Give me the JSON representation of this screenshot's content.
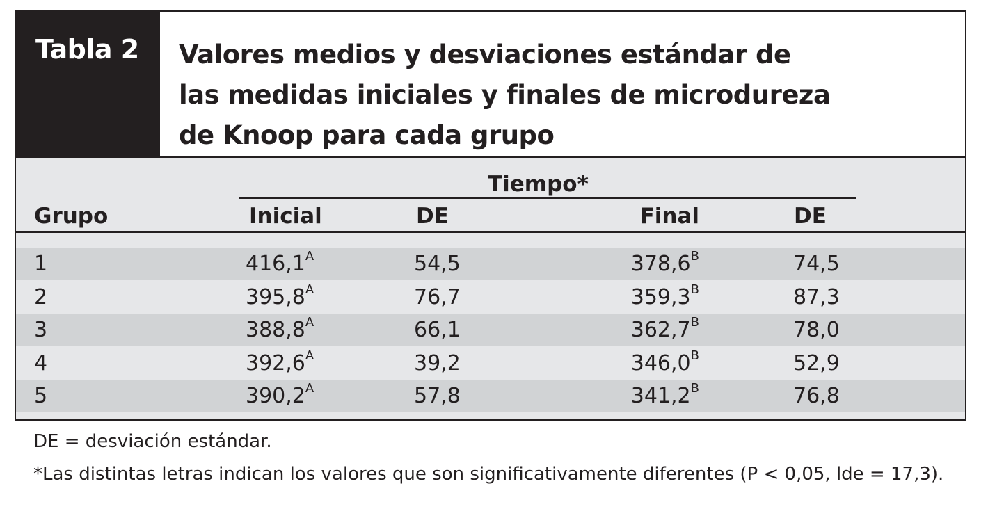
{
  "table": {
    "label": "Tabla 2",
    "title_lines": [
      "Valores medios y desviaciones estándar de",
      "las medidas iniciales y finales de microdureza",
      "de Knoop para cada grupo"
    ],
    "group_header": "Tiempo*",
    "columns": [
      "Grupo",
      "Inicial",
      "DE",
      "Final",
      "DE"
    ],
    "rows": [
      {
        "grupo": "1",
        "inicial": "416,1",
        "inicial_sup": "A",
        "de1": "54,5",
        "final": "378,6",
        "final_sup": "B",
        "de2": "74,5"
      },
      {
        "grupo": "2",
        "inicial": "395,8",
        "inicial_sup": "A",
        "de1": "76,7",
        "final": "359,3",
        "final_sup": "B",
        "de2": "87,3"
      },
      {
        "grupo": "3",
        "inicial": "388,8",
        "inicial_sup": "A",
        "de1": "66,1",
        "final": "362,7",
        "final_sup": "B",
        "de2": "78,0"
      },
      {
        "grupo": "4",
        "inicial": "392,6",
        "inicial_sup": "A",
        "de1": "39,2",
        "final": "346,0",
        "final_sup": "B",
        "de2": "52,9"
      },
      {
        "grupo": "5",
        "inicial": "390,2",
        "inicial_sup": "A",
        "de1": "57,8",
        "final": "341,2",
        "final_sup": "B",
        "de2": "76,8"
      }
    ]
  },
  "footnotes": [
    "DE = desviación estándar.",
    "*Las distintas letras indican los valores que son significativamente diferentes (P < 0,05, lde = 17,3)."
  ],
  "colors": {
    "dark": "#231f20",
    "stripe_light": "#e6e7e9",
    "stripe_dark": "#d1d3d5"
  }
}
